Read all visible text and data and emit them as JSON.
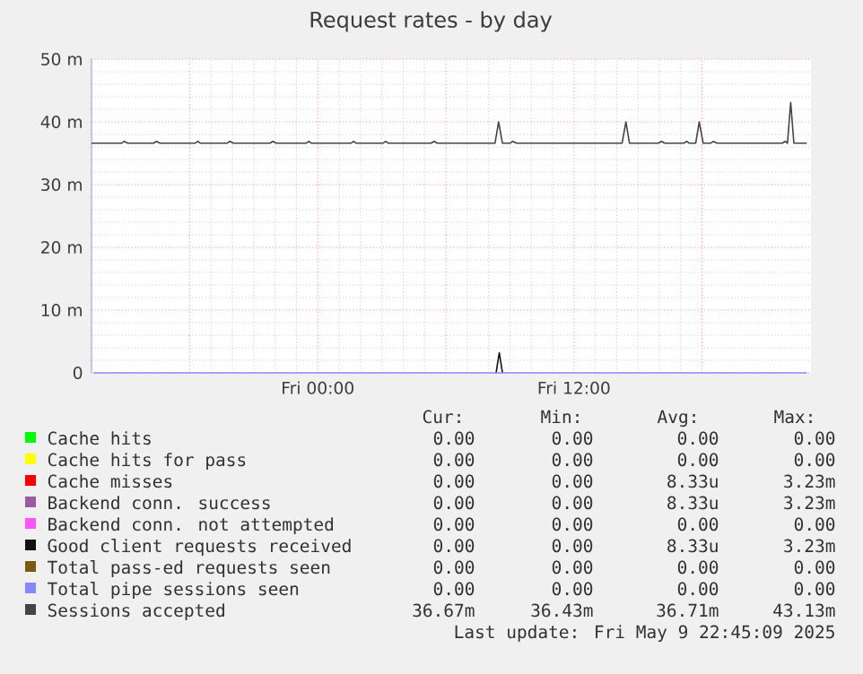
{
  "chart_data": {
    "type": "line",
    "title": "Request rates - by day",
    "xlim": [
      "2025-05-08T13:24",
      "2025-05-09T23:06"
    ],
    "ylim": [
      0,
      50
    ],
    "xticks": [
      {
        "value": "2025-05-08T18:00",
        "label": null
      },
      {
        "value": "2025-05-09T00:00",
        "label": "Fri 00:00"
      },
      {
        "value": "2025-05-09T06:00",
        "label": null
      },
      {
        "value": "2025-05-09T12:00",
        "label": "Fri 12:00"
      },
      {
        "value": "2025-05-09T18:00",
        "label": null
      }
    ],
    "yticks": [
      0,
      {
        "value": 10,
        "label": "10 m"
      },
      {
        "value": 20,
        "label": "20 m"
      },
      {
        "value": 30,
        "label": "30 m"
      },
      {
        "value": 40,
        "label": "40 m"
      },
      {
        "value": 50,
        "label": "50 m"
      }
    ],
    "grid": true,
    "legend": "bottom",
    "marker": "none",
    "line_style": "solid",
    "series": [
      {
        "name": "Cache hits",
        "color": "#00ff00"
      },
      {
        "name": "Cache hits for pass",
        "color": "#ffff00"
      },
      {
        "name": "Cache misses",
        "color": "#ff0000"
      },
      {
        "name": "Backend conn. success",
        "color": "#9c5aa0"
      },
      {
        "name": "Backend conn. not attempted",
        "color": "#ff55ff"
      },
      {
        "name": "Good client requests received",
        "color": "#111111",
        "x": [
          "2025-05-09T08:21",
          "2025-05-09T08:30",
          "2025-05-09T08:39"
        ],
        "values": [
          0,
          3.2,
          0
        ]
      },
      {
        "name": "Total pass-ed requests seen",
        "color": "#7a5c10"
      },
      {
        "name": "Total pipe sessions seen",
        "color": "#8888ff",
        "x": [
          "2025-05-08T13:30",
          "2025-05-09T22:54"
        ],
        "values": [
          0,
          0
        ]
      },
      {
        "name": "Sessions accepted",
        "color": "#444444",
        "x": [
          "2025-05-08T13:24",
          "2025-05-08T14:48",
          "2025-05-08T14:56",
          "2025-05-08T15:06",
          "2025-05-08T16:18",
          "2025-05-08T16:27",
          "2025-05-08T16:36",
          "2025-05-08T18:15",
          "2025-05-08T18:23",
          "2025-05-08T18:30",
          "2025-05-08T19:45",
          "2025-05-08T19:53",
          "2025-05-08T20:03",
          "2025-05-08T21:45",
          "2025-05-08T21:54",
          "2025-05-08T22:03",
          "2025-05-08T23:27",
          "2025-05-08T23:35",
          "2025-05-08T23:42",
          "2025-05-09T01:33",
          "2025-05-09T01:41",
          "2025-05-09T01:48",
          "2025-05-09T03:03",
          "2025-05-09T03:11",
          "2025-05-09T03:18",
          "2025-05-09T05:18",
          "2025-05-09T05:27",
          "2025-05-09T05:36",
          "2025-05-09T08:18",
          "2025-05-09T08:28",
          "2025-05-09T08:39",
          "2025-05-09T09:00",
          "2025-05-09T09:08",
          "2025-05-09T09:18",
          "2025-05-09T14:15",
          "2025-05-09T14:26",
          "2025-05-09T14:36",
          "2025-05-09T15:57",
          "2025-05-09T16:06",
          "2025-05-09T16:15",
          "2025-05-09T17:09",
          "2025-05-09T17:17",
          "2025-05-09T17:24",
          "2025-05-09T17:42",
          "2025-05-09T17:52",
          "2025-05-09T18:03",
          "2025-05-09T18:24",
          "2025-05-09T18:32",
          "2025-05-09T18:42",
          "2025-05-09T21:45",
          "2025-05-09T21:54",
          "2025-05-09T22:00",
          "2025-05-09T22:09",
          "2025-05-09T22:18",
          "2025-05-09T22:54"
        ],
        "values": [
          36.6,
          36.6,
          36.9,
          36.6,
          36.6,
          36.9,
          36.6,
          36.6,
          36.9,
          36.6,
          36.6,
          36.9,
          36.6,
          36.6,
          36.9,
          36.6,
          36.6,
          36.9,
          36.6,
          36.6,
          36.9,
          36.6,
          36.6,
          36.9,
          36.6,
          36.6,
          36.9,
          36.6,
          36.6,
          40,
          36.6,
          36.6,
          36.9,
          36.6,
          36.6,
          40,
          36.6,
          36.6,
          36.9,
          36.6,
          36.6,
          36.9,
          36.6,
          36.6,
          40,
          36.6,
          36.6,
          36.9,
          36.6,
          36.6,
          36.9,
          36.6,
          43.1,
          36.6,
          36.6
        ]
      }
    ],
    "annotations": [
      "Cur:",
      "Min:",
      "Avg:",
      "Max:",
      "0.00",
      "0.00",
      "0.00",
      "0.00",
      "0.00",
      "0.00",
      "0.00",
      "0.00",
      "0.00",
      "0.00",
      "8.33u",
      "3.23m",
      "0.00",
      "0.00",
      "8.33u",
      "3.23m",
      "0.00",
      "0.00",
      "0.00",
      "0.00",
      "0.00",
      "0.00",
      "8.33u",
      "3.23m",
      "0.00",
      "0.00",
      "0.00",
      "0.00",
      "0.00",
      "0.00",
      "0.00",
      "0.00",
      "36.67m",
      "36.43m",
      "36.71m",
      "43.13m",
      "Last update: Fri May  9 22:45:09 2025"
    ]
  }
}
